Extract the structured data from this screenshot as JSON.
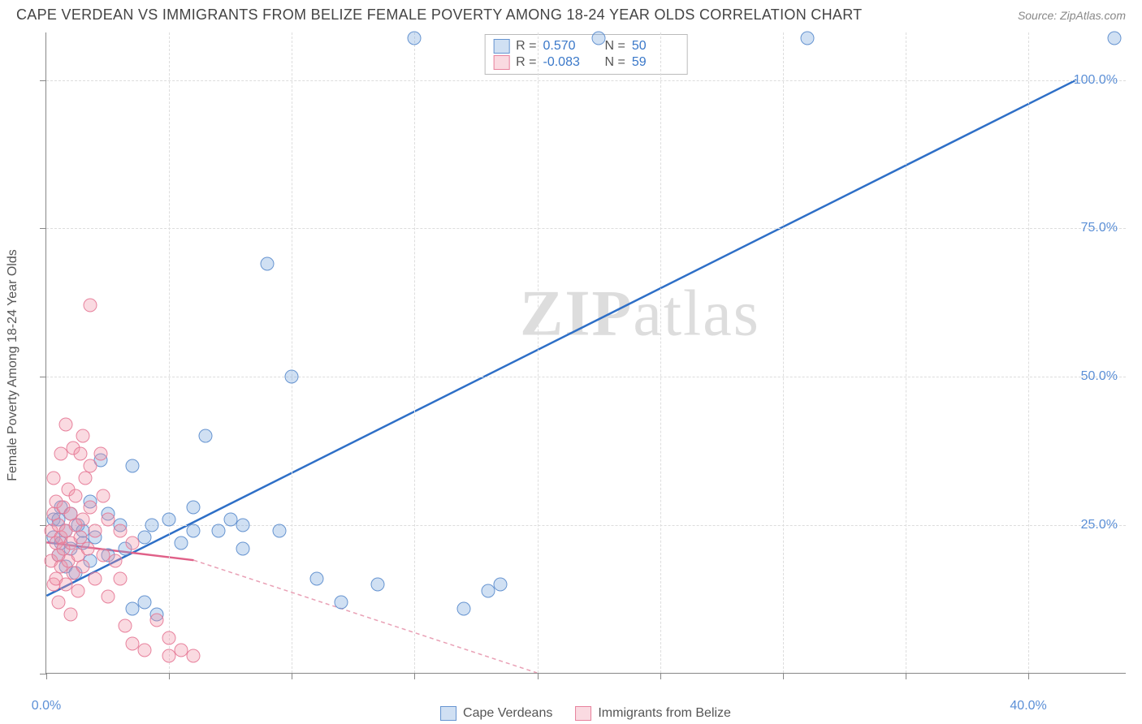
{
  "header": {
    "title": "CAPE VERDEAN VS IMMIGRANTS FROM BELIZE FEMALE POVERTY AMONG 18-24 YEAR OLDS CORRELATION CHART",
    "source": "Source: ZipAtlas.com"
  },
  "chart": {
    "type": "scatter",
    "y_axis_title": "Female Poverty Among 18-24 Year Olds",
    "xlim": [
      0,
      44
    ],
    "ylim": [
      0,
      108
    ],
    "x_ticks": [
      0,
      5,
      10,
      15,
      20,
      25,
      30,
      35,
      40
    ],
    "x_tick_labels": {
      "0": "0.0%",
      "40": "40.0%"
    },
    "y_ticks": [
      0,
      25,
      50,
      75,
      100
    ],
    "y_tick_labels": {
      "25": "25.0%",
      "50": "50.0%",
      "75": "75.0%",
      "100": "100.0%"
    },
    "grid_color": "#dddddd",
    "axis_color": "#888888",
    "background_color": "#ffffff",
    "watermark": "ZIPatlas",
    "series": [
      {
        "name": "Cape Verdeans",
        "color_fill": "rgba(120,165,220,0.35)",
        "color_stroke": "rgba(90,140,205,0.9)",
        "marker_size": 17,
        "r_value": "0.570",
        "n_value": "50",
        "trend": {
          "x1": 0,
          "y1": 13,
          "x2": 42,
          "y2": 100,
          "stroke": "#2e6fc7",
          "width": 2.5,
          "dash": "none"
        },
        "points": [
          [
            0.3,
            23
          ],
          [
            0.3,
            26
          ],
          [
            0.5,
            20
          ],
          [
            0.5,
            26
          ],
          [
            0.6,
            22
          ],
          [
            0.6,
            28
          ],
          [
            0.8,
            24
          ],
          [
            0.8,
            18
          ],
          [
            1.0,
            21
          ],
          [
            1.0,
            27
          ],
          [
            1.2,
            17
          ],
          [
            1.3,
            25
          ],
          [
            1.5,
            22
          ],
          [
            1.5,
            24
          ],
          [
            1.8,
            29
          ],
          [
            1.8,
            19
          ],
          [
            2.0,
            23
          ],
          [
            2.2,
            36
          ],
          [
            2.5,
            20
          ],
          [
            2.5,
            27
          ],
          [
            3.0,
            25
          ],
          [
            3.2,
            21
          ],
          [
            3.5,
            35
          ],
          [
            3.5,
            11
          ],
          [
            4.0,
            12
          ],
          [
            4.0,
            23
          ],
          [
            4.3,
            25
          ],
          [
            4.5,
            10
          ],
          [
            5.0,
            26
          ],
          [
            5.5,
            22
          ],
          [
            6.0,
            28
          ],
          [
            6.0,
            24
          ],
          [
            6.5,
            40
          ],
          [
            7.0,
            24
          ],
          [
            7.5,
            26
          ],
          [
            8.0,
            21
          ],
          [
            8.0,
            25
          ],
          [
            9.0,
            69
          ],
          [
            9.5,
            24
          ],
          [
            10.0,
            50
          ],
          [
            11.0,
            16
          ],
          [
            12.0,
            12
          ],
          [
            13.5,
            15
          ],
          [
            15.0,
            107
          ],
          [
            17.0,
            11
          ],
          [
            18.0,
            14
          ],
          [
            18.5,
            15
          ],
          [
            22.5,
            107
          ],
          [
            31.0,
            107
          ],
          [
            43.5,
            107
          ]
        ]
      },
      {
        "name": "Immigrants from Belize",
        "color_fill": "rgba(240,150,170,0.35)",
        "color_stroke": "rgba(230,120,150,0.9)",
        "marker_size": 17,
        "r_value": "-0.083",
        "n_value": "59",
        "trend_solid": {
          "x1": 0,
          "y1": 22,
          "x2": 6,
          "y2": 19,
          "stroke": "#e06088",
          "width": 2.5
        },
        "trend_dash": {
          "x1": 6,
          "y1": 19,
          "x2": 20,
          "y2": 0,
          "stroke": "#e9a0b5",
          "width": 1.5,
          "dash": "5,4"
        },
        "points": [
          [
            0.2,
            24
          ],
          [
            0.2,
            19
          ],
          [
            0.3,
            27
          ],
          [
            0.3,
            15
          ],
          [
            0.3,
            33
          ],
          [
            0.4,
            22
          ],
          [
            0.4,
            29
          ],
          [
            0.4,
            16
          ],
          [
            0.5,
            25
          ],
          [
            0.5,
            20
          ],
          [
            0.5,
            12
          ],
          [
            0.6,
            37
          ],
          [
            0.6,
            23
          ],
          [
            0.6,
            18
          ],
          [
            0.7,
            28
          ],
          [
            0.7,
            21
          ],
          [
            0.8,
            42
          ],
          [
            0.8,
            15
          ],
          [
            0.8,
            24
          ],
          [
            0.9,
            31
          ],
          [
            0.9,
            19
          ],
          [
            1.0,
            27
          ],
          [
            1.0,
            22
          ],
          [
            1.0,
            10
          ],
          [
            1.1,
            38
          ],
          [
            1.1,
            17
          ],
          [
            1.2,
            25
          ],
          [
            1.2,
            30
          ],
          [
            1.3,
            20
          ],
          [
            1.3,
            14
          ],
          [
            1.4,
            37
          ],
          [
            1.4,
            23
          ],
          [
            1.5,
            40
          ],
          [
            1.5,
            18
          ],
          [
            1.5,
            26
          ],
          [
            1.6,
            33
          ],
          [
            1.7,
            21
          ],
          [
            1.8,
            28
          ],
          [
            1.8,
            35
          ],
          [
            1.8,
            62
          ],
          [
            2.0,
            16
          ],
          [
            2.0,
            24
          ],
          [
            2.2,
            37
          ],
          [
            2.3,
            20
          ],
          [
            2.3,
            30
          ],
          [
            2.5,
            26
          ],
          [
            2.5,
            13
          ],
          [
            2.8,
            19
          ],
          [
            3.0,
            24
          ],
          [
            3.0,
            16
          ],
          [
            3.2,
            8
          ],
          [
            3.5,
            5
          ],
          [
            3.5,
            22
          ],
          [
            4.0,
            4
          ],
          [
            4.5,
            9
          ],
          [
            5.0,
            6
          ],
          [
            5.0,
            3
          ],
          [
            5.5,
            4
          ],
          [
            6.0,
            3
          ]
        ]
      }
    ],
    "stats_labels": {
      "r": "R =",
      "n": "N ="
    },
    "legend": [
      {
        "swatch": "blue",
        "label": "Cape Verdeans"
      },
      {
        "swatch": "pink",
        "label": "Immigrants from Belize"
      }
    ]
  }
}
